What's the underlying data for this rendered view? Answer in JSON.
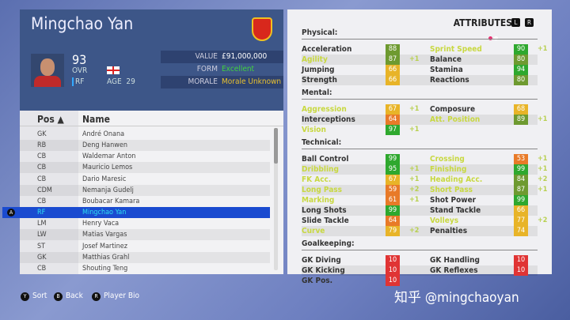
{
  "player": {
    "name": "Mingchao Yan",
    "ovr": "93",
    "ovr_label": "OVR",
    "position": "RF",
    "age_label": "AGE",
    "age": "29",
    "nation_flag": "england-flag",
    "club_crest": "guangzhou-crest",
    "info": [
      {
        "key": "VALUE",
        "value": "£91,000,000",
        "color": "#ffffff"
      },
      {
        "key": "FORM",
        "value": "Excellent",
        "color": "#40d040"
      },
      {
        "key": "MORALE",
        "value": "Morale Unknown",
        "color": "#e8c030"
      }
    ]
  },
  "list": {
    "headers": {
      "pos": "Pos ▲",
      "name": "Name"
    },
    "selected_index": 7,
    "select_button": "A",
    "rows": [
      {
        "pos": "GK",
        "name": "André Onana"
      },
      {
        "pos": "RB",
        "name": "Deng Hanwen"
      },
      {
        "pos": "CB",
        "name": "Waldemar Anton"
      },
      {
        "pos": "CB",
        "name": "Mauricio Lemos"
      },
      {
        "pos": "CB",
        "name": "Dario Maresic"
      },
      {
        "pos": "CDM",
        "name": "Nemanja Gudelj"
      },
      {
        "pos": "CB",
        "name": "Boubacar Kamara"
      },
      {
        "pos": "RF",
        "name": "Mingchao Yan"
      },
      {
        "pos": "LM",
        "name": "Henry Vaca"
      },
      {
        "pos": "LW",
        "name": "Matias Vargas"
      },
      {
        "pos": "ST",
        "name": "Josef Martinez"
      },
      {
        "pos": "GK",
        "name": "Matthias Grahl"
      },
      {
        "pos": "CB",
        "name": "Shouting Teng"
      }
    ]
  },
  "footer": [
    {
      "button": "Y",
      "label": "Sort"
    },
    {
      "button": "B",
      "label": "Back"
    },
    {
      "button": "R",
      "label": "Player Bio"
    }
  ],
  "attributes": {
    "title": "ATTRIBUTES",
    "left_btn": "L",
    "right_btn": "R",
    "colors": {
      "elite": "#2ea82e",
      "high": "#6e9a30",
      "mid": "#e8b428",
      "low": "#e87a28",
      "poor": "#e03434"
    },
    "sections": [
      {
        "name": "Physical:",
        "items": [
          [
            "Acceleration",
            88,
            "",
            false
          ],
          [
            "Sprint Speed",
            90,
            "+1",
            true
          ],
          [
            "Agility",
            87,
            "+1",
            true
          ],
          [
            "Balance",
            80,
            "",
            false
          ],
          [
            "Jumping",
            66,
            "",
            false
          ],
          [
            "Stamina",
            94,
            "",
            false
          ],
          [
            "Strength",
            66,
            "",
            false
          ],
          [
            "Reactions",
            80,
            "",
            false
          ]
        ]
      },
      {
        "name": "Mental:",
        "items": [
          [
            "Aggression",
            67,
            "+1",
            true
          ],
          [
            "Composure",
            68,
            "",
            false
          ],
          [
            "Interceptions",
            64,
            "",
            false
          ],
          [
            "Att. Position",
            89,
            "+1",
            true
          ],
          [
            "Vision",
            97,
            "+1",
            true
          ]
        ]
      },
      {
        "name": "Technical:",
        "items": [
          [
            "Ball Control",
            99,
            "",
            false
          ],
          [
            "Crossing",
            53,
            "+1",
            true
          ],
          [
            "Dribbling",
            95,
            "+1",
            true
          ],
          [
            "Finishing",
            99,
            "+1",
            true
          ],
          [
            "FK Acc.",
            67,
            "+1",
            true
          ],
          [
            "Heading Acc.",
            84,
            "+2",
            true
          ],
          [
            "Long Pass",
            59,
            "+2",
            true
          ],
          [
            "Short Pass",
            87,
            "+1",
            true
          ],
          [
            "Marking",
            61,
            "+1",
            true
          ],
          [
            "Shot Power",
            99,
            "",
            false
          ],
          [
            "Long Shots",
            99,
            "",
            false
          ],
          [
            "Stand Tackle",
            66,
            "",
            false
          ],
          [
            "Slide Tackle",
            64,
            "",
            false
          ],
          [
            "Volleys",
            77,
            "+2",
            true
          ],
          [
            "Curve",
            79,
            "+2",
            true
          ],
          [
            "Penalties",
            74,
            "",
            false
          ]
        ]
      },
      {
        "name": "Goalkeeping:",
        "items": [
          [
            "GK Diving",
            10,
            "",
            false
          ],
          [
            "GK Handling",
            10,
            "",
            false
          ],
          [
            "GK Kicking",
            10,
            "",
            false
          ],
          [
            "GK Reflexes",
            10,
            "",
            false
          ],
          [
            "GK Pos.",
            10,
            "",
            false
          ]
        ]
      }
    ]
  },
  "watermark": "知乎 @mingchaoyan"
}
